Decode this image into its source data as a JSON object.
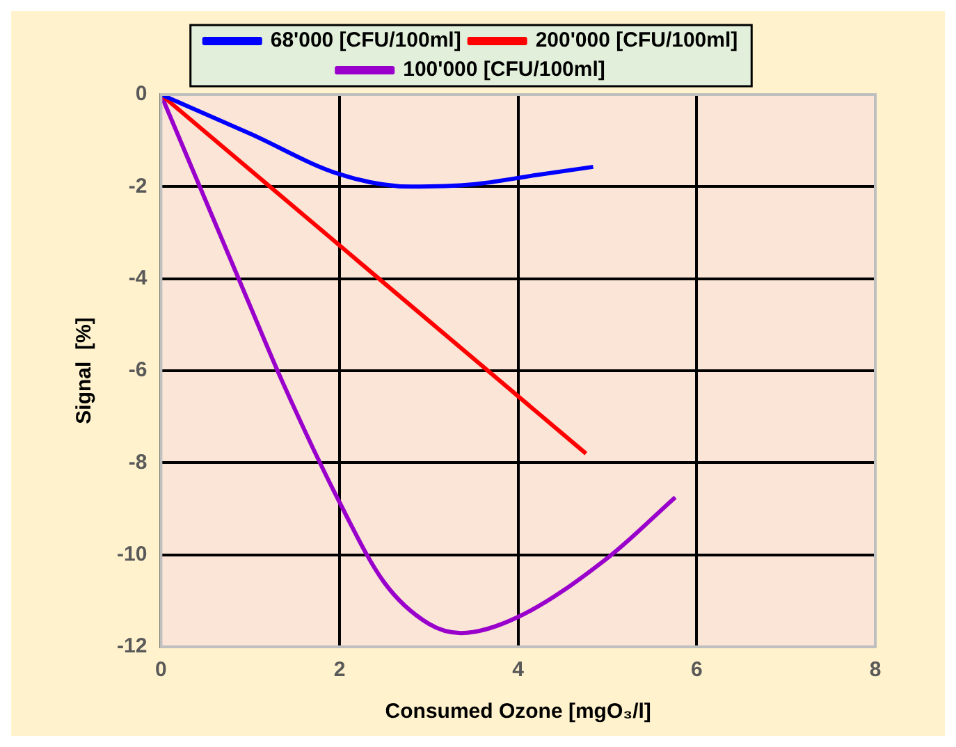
{
  "chart_data": {
    "type": "line",
    "xlabel": "Consumed Ozone [mgO₃/l]",
    "ylabel": "Signal  [%]",
    "xlim": [
      0,
      8
    ],
    "xticks": [
      0,
      2,
      4,
      6,
      8
    ],
    "ylim": [
      -12,
      0
    ],
    "yticks": [
      -12,
      -10,
      -8,
      -6,
      -4,
      -2,
      0
    ],
    "grid": true,
    "legend": "top",
    "marker": "none",
    "line_style": "solid",
    "series": [
      {
        "name": "68'000 [CFU/100ml]",
        "color": "#0000ff",
        "x": [
          0,
          1,
          2,
          2.8,
          3.5,
          4.2,
          4.84
        ],
        "values": [
          0,
          -0.85,
          -1.73,
          -2.0,
          -1.95,
          -1.75,
          -1.57
        ]
      },
      {
        "name": "200'000 [CFU/100ml]",
        "color": "#ff0000",
        "x": [
          0,
          4.76
        ],
        "values": [
          0,
          -7.8
        ]
      },
      {
        "name": "100'000 [CFU/100ml]",
        "color": "#9900cc",
        "x": [
          0,
          1,
          1.36,
          2,
          2.5,
          3,
          3.36,
          4,
          5,
          5.76
        ],
        "values": [
          0,
          -4.6,
          -6.24,
          -8.86,
          -10.6,
          -11.5,
          -11.7,
          -11.35,
          -10.07,
          -8.75
        ]
      }
    ]
  }
}
